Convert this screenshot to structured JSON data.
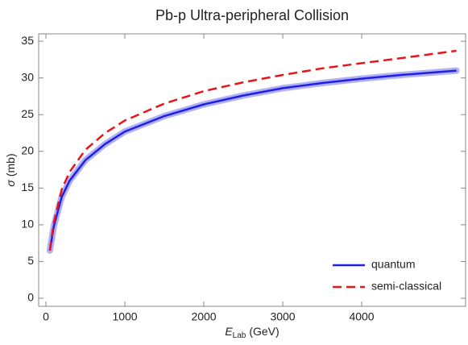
{
  "chart_data": {
    "type": "line",
    "title": "Pb-p   Ultra-peripheral Collision",
    "x_label": {
      "symbol": "E",
      "subscript": "Lab",
      "unit": "(GeV)"
    },
    "y_label": {
      "symbol": "σ",
      "unit": "(mb)"
    },
    "x": [
      50,
      100,
      200,
      300,
      500,
      750,
      1000,
      1500,
      2000,
      2500,
      3000,
      3500,
      4000,
      4500,
      5200
    ],
    "series": [
      {
        "name": "quantum",
        "color": "#1f1fe6",
        "style": "solid",
        "band": true,
        "values": [
          6.5,
          9.8,
          13.8,
          16.0,
          18.8,
          21.0,
          22.7,
          24.8,
          26.4,
          27.6,
          28.6,
          29.3,
          29.9,
          30.4,
          31.0
        ]
      },
      {
        "name": "semi-classical",
        "color": "#e8141a",
        "style": "dashed",
        "band": false,
        "values": [
          6.5,
          10.3,
          14.8,
          17.2,
          20.2,
          22.5,
          24.2,
          26.5,
          28.2,
          29.4,
          30.4,
          31.3,
          32.0,
          32.7,
          33.7
        ]
      }
    ],
    "xlim": [
      -92,
      5316
    ],
    "xticks": [
      0,
      1000,
      2000,
      3000,
      4000
    ],
    "ylim": [
      -1.1,
      36
    ],
    "yticks": [
      0,
      5,
      10,
      15,
      20,
      25,
      30,
      35
    ],
    "grid": false,
    "legend": "bottom-right"
  }
}
